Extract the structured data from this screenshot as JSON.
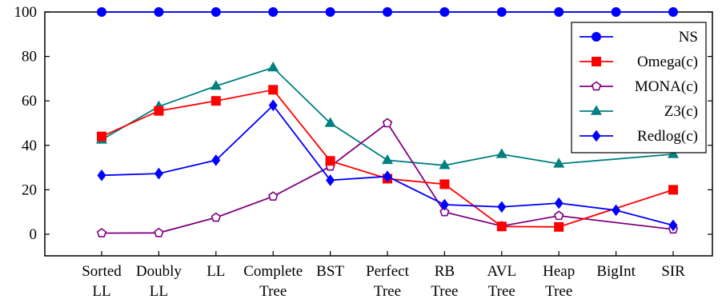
{
  "chart_data": {
    "type": "line",
    "title": "",
    "xlabel": "",
    "ylabel": "",
    "ylim": [
      -9,
      100
    ],
    "yticks": [
      0,
      20,
      40,
      60,
      80,
      100
    ],
    "grid": false,
    "legend_position": "top-right",
    "categories": [
      [
        "Sorted",
        "LL"
      ],
      [
        "Doubly",
        "LL"
      ],
      [
        "LL"
      ],
      [
        "Complete",
        "Tree"
      ],
      [
        "BST"
      ],
      [
        "Perfect",
        "Tree"
      ],
      [
        "RB",
        "Tree"
      ],
      [
        "AVL",
        "Tree"
      ],
      [
        "Heap",
        "Tree"
      ],
      [
        "BigInt"
      ],
      [
        "SIR"
      ]
    ],
    "series": [
      {
        "name": "NS",
        "color": "#0000ff",
        "marker": "circle",
        "values": [
          100,
          100,
          100,
          100,
          100,
          100,
          100,
          100,
          100,
          100,
          100
        ]
      },
      {
        "name": "Omega(c)",
        "color": "#ff0000",
        "marker": "square",
        "values": [
          44,
          55.5,
          60,
          65,
          33,
          25,
          22.5,
          3.5,
          3.3,
          null,
          20
        ]
      },
      {
        "name": "MONA(c)",
        "color": "#800080",
        "marker": "pentagon",
        "values": [
          0.5,
          0.6,
          7.5,
          17,
          30.5,
          50,
          10,
          3.7,
          8.3,
          null,
          2.2
        ]
      },
      {
        "name": "Z3(c)",
        "color": "#008080",
        "marker": "triangle",
        "values": [
          42.5,
          57.5,
          66.7,
          75,
          50,
          33.3,
          31,
          36,
          31.7,
          null,
          36
        ]
      },
      {
        "name": "Redlog(c)",
        "color": "#0000ff",
        "marker": "diamond",
        "values": [
          26.5,
          27.3,
          33.3,
          58,
          24.3,
          26,
          13.3,
          12.3,
          14,
          10.8,
          4
        ]
      }
    ]
  }
}
